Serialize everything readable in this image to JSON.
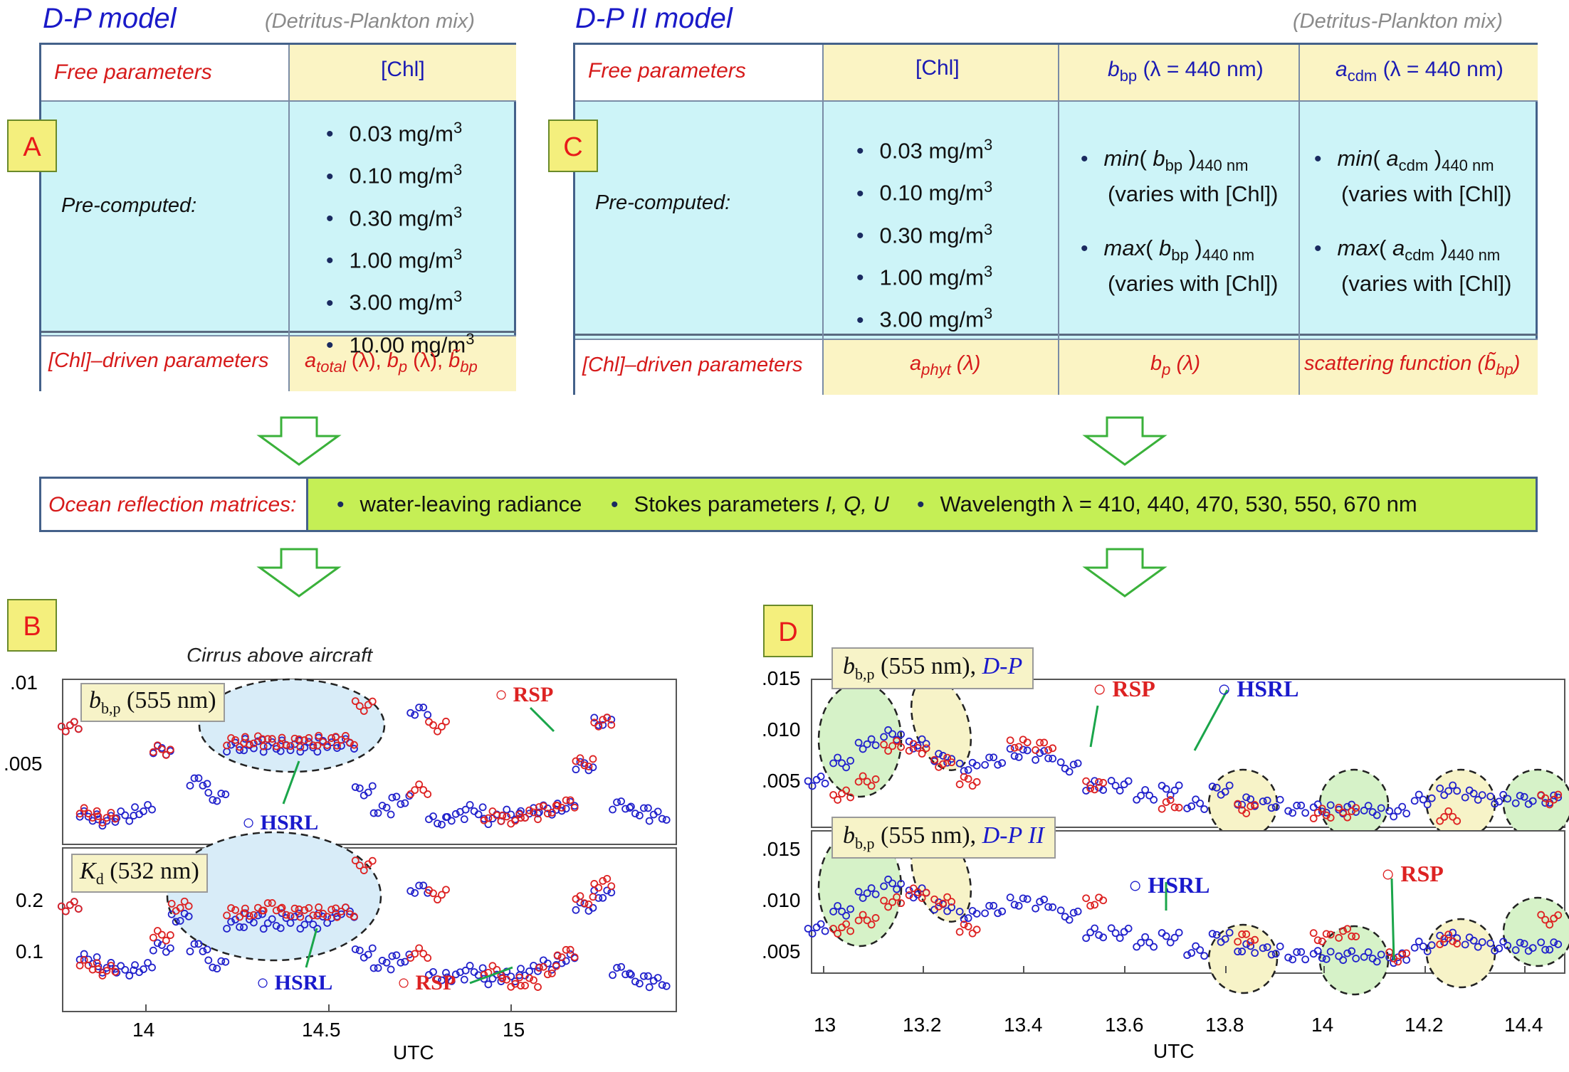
{
  "left_model": {
    "title": "D-P model",
    "note": "(Detritus-Plankton mix)",
    "label": "A",
    "free_params_label": "Free parameters",
    "chl_header": "[Chl]",
    "precomputed_label": "Pre-computed:",
    "chl_values": [
      "0.03 mg/m",
      "0.10 mg/m",
      "0.30 mg/m",
      "1.00 mg/m",
      "3.00 mg/m",
      "10.00 mg/m"
    ],
    "unit_sup": "3",
    "driven_label": "[Chl]–driven parameters",
    "driven_a": "a",
    "driven_a_sub": "total",
    "driven_a_rest": " (λ), ",
    "driven_b": "b",
    "driven_b_sub": "p",
    "driven_b_rest": " (λ), ",
    "driven_bbp": "b̃",
    "driven_bbp_sub": "bp"
  },
  "right_model": {
    "title": "D-P II model",
    "note": "(Detritus-Plankton mix)",
    "label": "C",
    "free_params_label": "Free parameters",
    "chl_header": "[Chl]",
    "bbp_header_sym": "b",
    "bbp_header_sub": "bp",
    "bbp_header_rest": " (λ = 440 nm)",
    "acdm_header_sym": "a",
    "acdm_header_sub": "cdm",
    "acdm_header_rest": " (λ = 440 nm)",
    "precomputed_label": "Pre-computed:",
    "chl_values": [
      "0.03 mg/m",
      "0.10 mg/m",
      "0.30 mg/m",
      "1.00 mg/m",
      "3.00 mg/m"
    ],
    "unit_sup": "3",
    "min_word": "min",
    "max_word": "max",
    "bbp_sym": "b",
    "bbp_sub": "bp",
    "acdm_sym": "a",
    "acdm_sub": "cdm",
    "nm_tag": "440 nm",
    "varies": "(varies with [Chl])",
    "driven_label": "[Chl]–driven parameters",
    "aphyt_sym": "a",
    "aphyt_sub": "phyt",
    "aphyt_rest": " (λ)",
    "bp_sym": "b",
    "bp_sub": "p",
    "bp_rest": " (λ)",
    "scat_label": "scattering function (",
    "scat_sym": "b̃",
    "scat_sub": "bp",
    "scat_close": ")"
  },
  "ocean": {
    "label": "Ocean reflection matrices:",
    "item1": "water-leaving radiance",
    "item2_pre": "Stokes parameters ",
    "item2_i": "I, Q, U",
    "item3": "Wavelength λ = 410, 440, 470, 530, 550, 670 nm"
  },
  "panel_b": {
    "label": "B",
    "cirrus": "Cirrus above aircraft",
    "top_label_sym": "b",
    "top_label_sub": "b,p",
    "top_label_rest": " (555 nm)",
    "bottom_label_sym": "K",
    "bottom_label_sub": "d",
    "bottom_label_rest": " (532 nm)",
    "hsrl": "HSRL",
    "rsp": "RSP",
    "top_yticks": [
      ".01",
      ".005"
    ],
    "bottom_yticks": [
      "0.2",
      "0.1"
    ],
    "xticks": [
      "14",
      "14.5",
      "15"
    ],
    "xlabel": "UTC"
  },
  "panel_d": {
    "label": "D",
    "top_label_sym": "b",
    "top_label_sub": "b,p",
    "top_label_rest": " (555 nm), ",
    "top_label_model": "D-P",
    "bottom_label_model": "D-P II",
    "hsrl": "HSRL",
    "rsp": "RSP",
    "yticks": [
      ".015",
      ".010",
      ".005"
    ],
    "xticks": [
      "13",
      "13.2",
      "13.4",
      "13.6",
      "13.8",
      "14",
      "14.2",
      "14.4"
    ],
    "xlabel": "UTC"
  },
  "chart_data": [
    {
      "type": "scatter",
      "title": "bb,p (555 nm)",
      "xlabel": "UTC",
      "ylabel": "",
      "xlim": [
        13.78,
        15.45
      ],
      "ylim": [
        0.0,
        0.0105
      ],
      "series": [
        {
          "name": "HSRL",
          "color": "#2222cc",
          "x": [
            13.8,
            13.85,
            13.9,
            13.95,
            14.0,
            14.05,
            14.1,
            14.15,
            14.2,
            14.25,
            14.3,
            14.35,
            14.4,
            14.45,
            14.5,
            14.55,
            14.6,
            14.65,
            14.7,
            14.75,
            14.8,
            14.85,
            14.9,
            14.95,
            15.0,
            15.05,
            15.1,
            15.15,
            15.2,
            15.25,
            15.3,
            15.35,
            15.4
          ],
          "y": [
            0.0075,
            0.0018,
            0.0015,
            0.0018,
            0.0022,
            0.006,
            0.009,
            0.004,
            0.003,
            0.0062,
            0.0064,
            0.0062,
            0.0063,
            0.0062,
            0.0065,
            0.0064,
            0.0034,
            0.0022,
            0.0028,
            0.0085,
            0.0015,
            0.0018,
            0.0022,
            0.0016,
            0.0019,
            0.002,
            0.0022,
            0.0024,
            0.005,
            0.0078,
            0.0025,
            0.0021,
            0.0018
          ]
        },
        {
          "name": "RSP",
          "color": "#dd2222",
          "x": [
            13.8,
            13.85,
            13.9,
            14.05,
            14.1,
            14.25,
            14.3,
            14.35,
            14.4,
            14.45,
            14.5,
            14.55,
            14.6,
            14.75,
            14.8,
            14.95,
            15.0,
            15.05,
            15.1,
            15.15,
            15.2,
            15.25
          ],
          "y": [
            0.0075,
            0.002,
            0.0017,
            0.006,
            0.0085,
            0.0065,
            0.0066,
            0.0065,
            0.0065,
            0.0065,
            0.0066,
            0.0066,
            0.0088,
            0.0035,
            0.0075,
            0.0018,
            0.0016,
            0.0019,
            0.0022,
            0.0026,
            0.0052,
            0.0078
          ]
        }
      ]
    },
    {
      "type": "scatter",
      "title": "Kd (532 nm)",
      "xlabel": "UTC",
      "ylabel": "",
      "xlim": [
        13.78,
        15.45
      ],
      "ylim": [
        0.02,
        0.3
      ],
      "series": [
        {
          "name": "HSRL",
          "color": "#2222cc",
          "x": [
            13.8,
            13.85,
            13.9,
            13.95,
            14.0,
            14.05,
            14.1,
            14.15,
            14.2,
            14.25,
            14.3,
            14.35,
            14.4,
            14.45,
            14.5,
            14.55,
            14.6,
            14.65,
            14.7,
            14.75,
            14.8,
            14.85,
            14.9,
            14.95,
            15.0,
            15.05,
            15.1,
            15.15,
            15.2,
            15.25,
            15.3,
            15.35,
            15.4
          ],
          "y": [
            0.2,
            0.11,
            0.095,
            0.09,
            0.095,
            0.13,
            0.18,
            0.13,
            0.1,
            0.17,
            0.18,
            0.17,
            0.18,
            0.17,
            0.18,
            0.19,
            0.12,
            0.1,
            0.11,
            0.23,
            0.08,
            0.08,
            0.09,
            0.075,
            0.08,
            0.09,
            0.1,
            0.11,
            0.2,
            0.22,
            0.09,
            0.075,
            0.07
          ]
        },
        {
          "name": "RSP",
          "color": "#dd2222",
          "x": [
            13.8,
            13.85,
            13.9,
            14.05,
            14.1,
            14.25,
            14.3,
            14.35,
            14.4,
            14.45,
            14.5,
            14.55,
            14.6,
            14.75,
            14.8,
            14.95,
            15.0,
            15.05,
            15.1,
            15.15,
            15.2,
            15.25
          ],
          "y": [
            0.2,
            0.1,
            0.09,
            0.15,
            0.2,
            0.19,
            0.19,
            0.2,
            0.19,
            0.19,
            0.19,
            0.19,
            0.27,
            0.12,
            0.22,
            0.09,
            0.07,
            0.07,
            0.09,
            0.12,
            0.21,
            0.24
          ]
        }
      ]
    },
    {
      "type": "scatter",
      "title": "bb,p (555 nm), D-P",
      "xlabel": "UTC",
      "ylabel": "",
      "xlim": [
        12.99,
        14.48
      ],
      "ylim": [
        0.0,
        0.016
      ],
      "series": [
        {
          "name": "HSRL",
          "color": "#2222cc",
          "x": [
            13.0,
            13.05,
            13.1,
            13.15,
            13.2,
            13.25,
            13.3,
            13.35,
            13.4,
            13.45,
            13.5,
            13.55,
            13.6,
            13.65,
            13.7,
            13.75,
            13.8,
            13.85,
            13.9,
            13.95,
            14.0,
            14.05,
            14.1,
            14.15,
            14.2,
            14.25,
            14.3,
            14.35,
            14.4,
            14.45
          ],
          "y": [
            0.005,
            0.007,
            0.009,
            0.01,
            0.009,
            0.0075,
            0.0065,
            0.0072,
            0.008,
            0.0078,
            0.0065,
            0.0045,
            0.0045,
            0.0035,
            0.004,
            0.0025,
            0.004,
            0.0028,
            0.0025,
            0.002,
            0.002,
            0.002,
            0.0018,
            0.0017,
            0.003,
            0.004,
            0.0035,
            0.003,
            0.003,
            0.003
          ]
        },
        {
          "name": "RSP",
          "color": "#dd2222",
          "x": [
            13.05,
            13.1,
            13.15,
            13.2,
            13.25,
            13.3,
            13.4,
            13.45,
            13.55,
            13.7,
            13.85,
            14.0,
            14.05,
            14.25,
            14.45
          ],
          "y": [
            0.0035,
            0.005,
            0.0088,
            0.0085,
            0.007,
            0.005,
            0.009,
            0.0088,
            0.0045,
            0.0025,
            0.002,
            0.0015,
            0.0016,
            0.0012,
            0.003
          ]
        }
      ]
    },
    {
      "type": "scatter",
      "title": "bb,p (555 nm), D-P II",
      "xlabel": "UTC",
      "ylabel": "",
      "xlim": [
        12.99,
        14.48
      ],
      "ylim": [
        0.0,
        0.016
      ],
      "series": [
        {
          "name": "HSRL",
          "color": "#2222cc",
          "x": [
            13.0,
            13.05,
            13.1,
            13.15,
            13.2,
            13.25,
            13.3,
            13.35,
            13.4,
            13.45,
            13.5,
            13.55,
            13.6,
            13.65,
            13.7,
            13.75,
            13.8,
            13.85,
            13.9,
            13.95,
            14.0,
            14.05,
            14.1,
            14.15,
            14.2,
            14.25,
            14.3,
            14.35,
            14.4,
            14.45
          ],
          "y": [
            0.005,
            0.007,
            0.009,
            0.01,
            0.009,
            0.0075,
            0.0065,
            0.0072,
            0.008,
            0.0078,
            0.0065,
            0.0045,
            0.0045,
            0.0035,
            0.004,
            0.0025,
            0.004,
            0.0028,
            0.0025,
            0.002,
            0.002,
            0.002,
            0.0018,
            0.0017,
            0.003,
            0.004,
            0.0035,
            0.003,
            0.003,
            0.003
          ]
        },
        {
          "name": "RSP",
          "color": "#dd2222",
          "x": [
            13.05,
            13.1,
            13.15,
            13.2,
            13.25,
            13.3,
            13.55,
            13.85,
            14.0,
            14.05,
            14.15,
            14.25,
            14.45
          ],
          "y": [
            0.005,
            0.006,
            0.008,
            0.009,
            0.008,
            0.005,
            0.008,
            0.004,
            0.004,
            0.0045,
            0.0018,
            0.0038,
            0.006
          ]
        }
      ]
    }
  ]
}
